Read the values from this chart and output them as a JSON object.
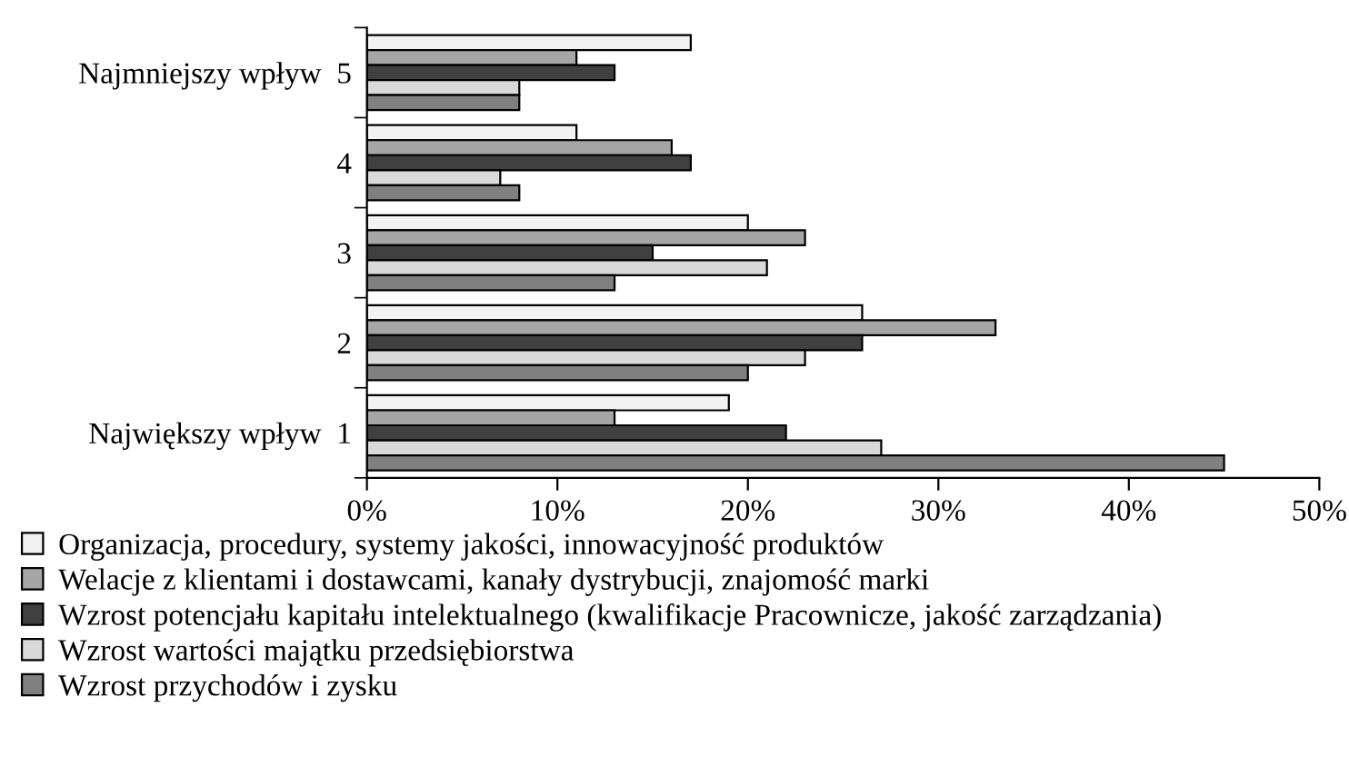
{
  "chart_data": {
    "type": "bar",
    "orientation": "horizontal",
    "categories": [
      "Najmniejszy wpływ  5",
      "4",
      "3",
      "2",
      "Największy wpływ  1"
    ],
    "series": [
      {
        "name": "Organizacja, procedury, systemy jakości, innowacyjność produktów",
        "color": "#f2f2f2",
        "values": [
          17,
          11,
          20,
          26,
          19
        ]
      },
      {
        "name": "Welacje z klientami i dostawcami, kanały dystrybucji, znajomość marki",
        "color": "#a6a6a6",
        "values": [
          11,
          16,
          23,
          33,
          13
        ]
      },
      {
        "name": "Wzrost potencjału kapitału intelektualnego (kwalifikacje Pracownicze, jakość zarządzania)",
        "color": "#404040",
        "values": [
          13,
          17,
          15,
          26,
          22
        ]
      },
      {
        "name": "Wzrost wartości majątku przedsiębiorstwa",
        "color": "#d9d9d9",
        "values": [
          8,
          7,
          21,
          23,
          27
        ]
      },
      {
        "name": "Wzrost przychodów i zysku",
        "color": "#808080",
        "values": [
          8,
          8,
          13,
          20,
          45
        ]
      }
    ],
    "xlim": [
      0,
      50
    ],
    "xticks": [
      {
        "value": 0,
        "label": "0%"
      },
      {
        "value": 10,
        "label": "10%"
      },
      {
        "value": 20,
        "label": "20%"
      },
      {
        "value": 30,
        "label": "30%"
      },
      {
        "value": 40,
        "label": "40%"
      },
      {
        "value": 50,
        "label": "50%"
      }
    ],
    "grid": false,
    "legend": "bottom left"
  }
}
